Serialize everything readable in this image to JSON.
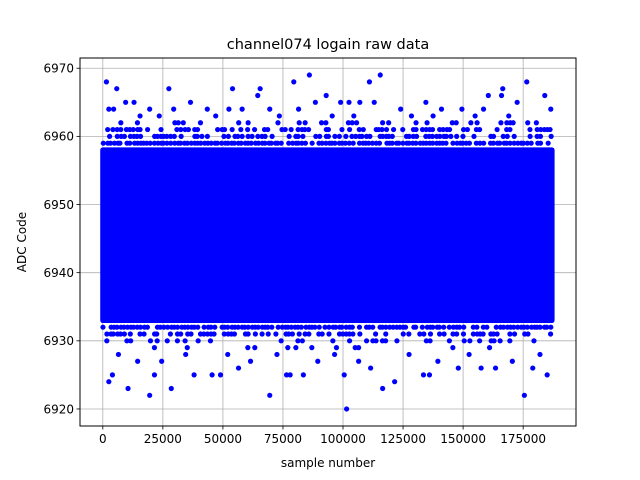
{
  "chart_data": {
    "type": "scatter",
    "title": "channel074 logain raw data",
    "xlabel": "sample number",
    "ylabel": "ADC Code",
    "xlim": [
      -9500,
      197000
    ],
    "ylim": [
      6917.5,
      6971.5
    ],
    "xticks": [
      0,
      25000,
      50000,
      75000,
      100000,
      125000,
      150000,
      175000
    ],
    "xtick_labels": [
      "0",
      "25000",
      "50000",
      "75000",
      "100000",
      "125000",
      "150000",
      "175000"
    ],
    "yticks": [
      6920,
      6930,
      6940,
      6950,
      6960,
      6970
    ],
    "ytick_labels": [
      "6920",
      "6930",
      "6940",
      "6950",
      "6960",
      "6970"
    ],
    "grid": true,
    "marker_color": "#0000ff",
    "x_range": [
      0,
      187000
    ],
    "dense_band": [
      6933,
      6958
    ],
    "series": [
      {
        "points": [
          [
            1500,
            6968
          ],
          [
            5800,
            6967
          ],
          [
            27500,
            6967
          ],
          [
            54000,
            6967
          ],
          [
            65500,
            6967
          ],
          [
            79500,
            6968
          ],
          [
            86000,
            6969
          ],
          [
            111000,
            6968
          ],
          [
            115500,
            6969
          ],
          [
            166500,
            6967
          ],
          [
            176500,
            6968
          ],
          [
            2500,
            6964
          ],
          [
            4500,
            6964
          ],
          [
            9500,
            6965
          ],
          [
            13000,
            6965
          ],
          [
            19500,
            6964
          ],
          [
            29500,
            6964
          ],
          [
            36500,
            6965
          ],
          [
            43500,
            6964
          ],
          [
            52500,
            6964
          ],
          [
            58000,
            6964
          ],
          [
            64500,
            6966
          ],
          [
            69500,
            6964
          ],
          [
            81500,
            6964
          ],
          [
            88500,
            6965
          ],
          [
            93000,
            6966
          ],
          [
            99000,
            6965
          ],
          [
            102500,
            6965
          ],
          [
            107000,
            6965
          ],
          [
            113000,
            6965
          ],
          [
            124000,
            6964
          ],
          [
            134500,
            6965
          ],
          [
            141000,
            6964
          ],
          [
            149500,
            6964
          ],
          [
            158500,
            6964
          ],
          [
            160500,
            6966
          ],
          [
            166000,
            6966
          ],
          [
            172500,
            6965
          ],
          [
            184000,
            6966
          ],
          [
            186500,
            6964
          ],
          [
            7500,
            6962
          ],
          [
            15500,
            6963
          ],
          [
            23500,
            6963
          ],
          [
            33500,
            6962
          ],
          [
            47000,
            6963
          ],
          [
            60500,
            6962
          ],
          [
            73500,
            6963
          ],
          [
            95500,
            6963
          ],
          [
            104500,
            6963
          ],
          [
            119000,
            6962
          ],
          [
            128500,
            6963
          ],
          [
            137500,
            6963
          ],
          [
            145500,
            6962
          ],
          [
            155000,
            6963
          ],
          [
            169000,
            6963
          ],
          [
            180500,
            6962
          ],
          [
            2500,
            6924
          ],
          [
            4000,
            6925
          ],
          [
            10500,
            6923
          ],
          [
            19500,
            6922
          ],
          [
            21500,
            6925
          ],
          [
            28500,
            6923
          ],
          [
            38000,
            6925
          ],
          [
            45500,
            6925
          ],
          [
            49000,
            6925
          ],
          [
            56500,
            6926
          ],
          [
            69500,
            6922
          ],
          [
            76500,
            6925
          ],
          [
            78000,
            6925
          ],
          [
            83500,
            6925
          ],
          [
            100500,
            6925
          ],
          [
            101500,
            6920
          ],
          [
            111500,
            6926
          ],
          [
            116500,
            6923
          ],
          [
            121500,
            6924
          ],
          [
            133500,
            6925
          ],
          [
            136000,
            6925
          ],
          [
            148000,
            6926
          ],
          [
            157500,
            6926
          ],
          [
            163500,
            6926
          ],
          [
            175500,
            6922
          ],
          [
            179000,
            6926
          ],
          [
            185000,
            6925
          ],
          [
            6500,
            6928
          ],
          [
            14500,
            6927
          ],
          [
            24500,
            6927
          ],
          [
            34500,
            6928
          ],
          [
            52000,
            6928
          ],
          [
            61500,
            6927
          ],
          [
            72500,
            6928
          ],
          [
            89500,
            6927
          ],
          [
            96500,
            6928
          ],
          [
            106500,
            6927
          ],
          [
            127500,
            6928
          ],
          [
            139500,
            6927
          ],
          [
            152500,
            6928
          ],
          [
            170500,
            6927
          ],
          [
            182000,
            6928
          ]
        ]
      }
    ]
  }
}
